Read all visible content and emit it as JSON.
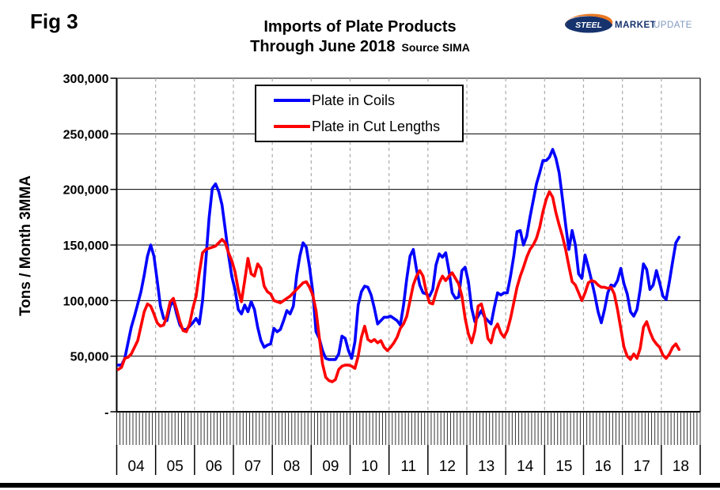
{
  "figure_label": "Fig 3",
  "title_line1": "Imports of Plate Products",
  "title_line2": "Through June 2018",
  "title_source": "Source SIMA",
  "logo": {
    "word1": "STEEL",
    "word2": "MARKET",
    "word3": "UPDATE",
    "navy": "#16336e",
    "orange": "#e87722",
    "light_blue": "#8098c0"
  },
  "chart_data": {
    "type": "line",
    "title": "Imports of Plate Products Through June 2018",
    "source": "SIMA",
    "xlabel": "",
    "ylabel": "Tons / Month 3MMA",
    "ylim": [
      0,
      300000
    ],
    "ytick_step": 50000,
    "ytick_labels": [
      "-",
      "50,000",
      "100,000",
      "150,000",
      "200,000",
      "250,000",
      "300,000"
    ],
    "x_years": [
      "04",
      "05",
      "06",
      "07",
      "08",
      "09",
      "10",
      "11",
      "12",
      "13",
      "14",
      "15",
      "16",
      "17",
      "18"
    ],
    "x_start": "2004-01",
    "x_end": "2018-06",
    "grid": {
      "horizontal": "solid",
      "vertical": "dashed at year boundaries"
    },
    "legend_position": "top-center",
    "colors": {
      "axis": "#000000",
      "h_grid": "#000000",
      "v_grid": "#aaaaaa"
    },
    "series": [
      {
        "name": "Plate in Coils",
        "color": "#0000ff",
        "values": [
          42000,
          42000,
          48000,
          62000,
          76000,
          86000,
          97000,
          108000,
          123000,
          140000,
          150000,
          140000,
          118000,
          95000,
          84000,
          82000,
          95000,
          100000,
          88000,
          78000,
          74000,
          74000,
          77000,
          80000,
          84000,
          79000,
          100000,
          136000,
          174000,
          201000,
          205000,
          198000,
          186000,
          164000,
          141000,
          122000,
          110000,
          92000,
          88000,
          96000,
          90000,
          99000,
          92000,
          76000,
          64000,
          58000,
          60000,
          61000,
          75000,
          72000,
          74000,
          82000,
          91000,
          88000,
          95000,
          122000,
          140000,
          152000,
          148000,
          130000,
          108000,
          72000,
          66000,
          55000,
          48000,
          47000,
          47000,
          47000,
          52000,
          68000,
          66000,
          55000,
          48000,
          63000,
          96000,
          108000,
          113000,
          112000,
          105000,
          93000,
          79000,
          82000,
          85000,
          85000,
          86000,
          84000,
          82000,
          78000,
          96000,
          120000,
          140000,
          146000,
          128000,
          114000,
          107000,
          106000,
          104000,
          110000,
          132000,
          142000,
          139000,
          143000,
          127000,
          107000,
          102000,
          103000,
          127000,
          130000,
          117000,
          93000,
          81000,
          86000,
          91000,
          85000,
          82000,
          79000,
          94000,
          107000,
          105000,
          107000,
          107000,
          122000,
          140000,
          162000,
          163000,
          150000,
          158000,
          175000,
          190000,
          205000,
          215000,
          226000,
          226000,
          229000,
          236000,
          228000,
          215000,
          192000,
          168000,
          146000,
          163000,
          150000,
          124000,
          120000,
          141000,
          130000,
          118000,
          105000,
          90000,
          80000,
          92000,
          107000,
          114000,
          113000,
          118000,
          129000,
          115000,
          106000,
          90000,
          86000,
          92000,
          110000,
          133000,
          128000,
          110000,
          114000,
          127000,
          116000,
          104000,
          101000,
          117000,
          135000,
          152000,
          157000
        ]
      },
      {
        "name": "Plate in Cut Lengths",
        "color": "#ff0000",
        "values": [
          38000,
          40000,
          48000,
          49000,
          52000,
          58000,
          64000,
          77000,
          90000,
          97000,
          95000,
          88000,
          80000,
          77000,
          78000,
          86000,
          99000,
          102000,
          92000,
          81000,
          73000,
          72000,
          79000,
          93000,
          104000,
          125000,
          143000,
          146000,
          147000,
          148000,
          149000,
          152000,
          155000,
          152000,
          143000,
          136000,
          126000,
          110000,
          99000,
          118000,
          138000,
          124000,
          122000,
          133000,
          129000,
          113000,
          108000,
          106000,
          100000,
          99000,
          98000,
          100000,
          102000,
          104000,
          107000,
          110000,
          113000,
          116000,
          117000,
          112000,
          105000,
          91000,
          67000,
          43000,
          31000,
          28000,
          27000,
          29000,
          38000,
          41000,
          42000,
          42000,
          41000,
          39000,
          50000,
          67000,
          77000,
          65000,
          63000,
          65000,
          62000,
          64000,
          58000,
          55000,
          58000,
          62000,
          67000,
          75000,
          79000,
          86000,
          100000,
          114000,
          122000,
          127000,
          122000,
          108000,
          98000,
          97000,
          107000,
          116000,
          122000,
          118000,
          122000,
          125000,
          120000,
          115000,
          104000,
          84000,
          70000,
          62000,
          73000,
          95000,
          97000,
          86000,
          66000,
          62000,
          74000,
          79000,
          71000,
          67000,
          73000,
          84000,
          98000,
          112000,
          122000,
          130000,
          139000,
          146000,
          150000,
          156000,
          166000,
          180000,
          191000,
          198000,
          193000,
          179000,
          168000,
          158000,
          146000,
          131000,
          117000,
          114000,
          107000,
          100000,
          107000,
          116000,
          118000,
          117000,
          114000,
          112000,
          112000,
          111000,
          112000,
          106000,
          92000,
          75000,
          58000,
          50000,
          47000,
          52000,
          48000,
          57000,
          76000,
          81000,
          72000,
          65000,
          61000,
          58000,
          51000,
          48000,
          52000,
          58000,
          61000,
          56000
        ]
      }
    ]
  }
}
